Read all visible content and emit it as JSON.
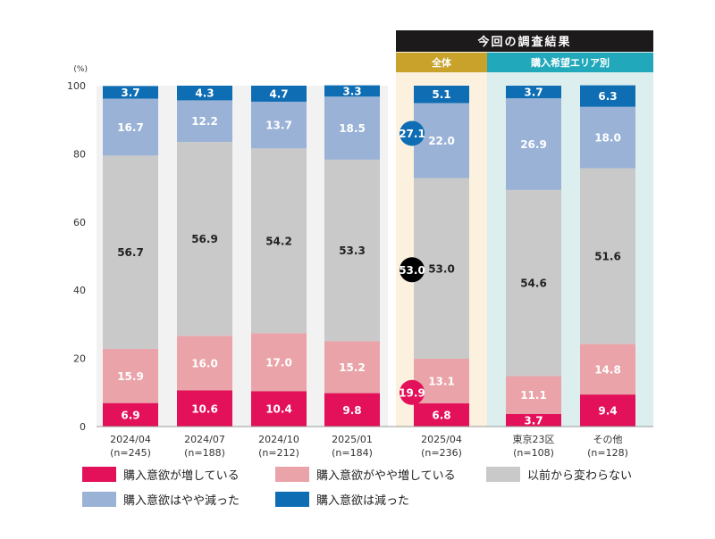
{
  "header": {
    "survey_title": "今回の調査結果",
    "overall_label": "全体",
    "area_label": "購入希望エリア別"
  },
  "colors": {
    "increased": "#e3105a",
    "slightly_increased": "#eaa3a8",
    "unchanged": "#c9c9c9",
    "slightly_decreased": "#99b2d6",
    "decreased": "#0e6db3",
    "title_bg": "#1c1a1a",
    "overall_header": "#c8a22a",
    "overall_bg": "#fbf1de",
    "area_header": "#21a8bb",
    "area_bg": "#dcefee",
    "history_bg": "#f2f2f2"
  },
  "chart_data": {
    "type": "bar",
    "stacked": true,
    "unit_label": "(%)",
    "ylim": [
      0,
      100
    ],
    "yticks": [
      "0",
      "20",
      "40",
      "60",
      "80",
      "100"
    ],
    "categories": [
      {
        "label": "2024/04",
        "n": "(n=245)"
      },
      {
        "label": "2024/07",
        "n": "(n=188)"
      },
      {
        "label": "2024/10",
        "n": "(n=212)"
      },
      {
        "label": "2025/01",
        "n": "(n=184)"
      },
      {
        "label": "2025/04",
        "n": "(n=236)"
      },
      {
        "label": "東京23区",
        "n": "(n=108)"
      },
      {
        "label": "その他",
        "n": "(n=128)"
      }
    ],
    "series": [
      {
        "name": "購入意欲が増している",
        "color_key": "increased",
        "values": [
          6.9,
          10.6,
          10.4,
          9.8,
          6.8,
          3.7,
          9.4
        ]
      },
      {
        "name": "購入意欲がやや増している",
        "color_key": "slightly_increased",
        "values": [
          15.9,
          16.0,
          17.0,
          15.2,
          13.1,
          11.1,
          14.8
        ]
      },
      {
        "name": "以前から変わらない",
        "color_key": "unchanged",
        "values": [
          56.7,
          56.9,
          54.2,
          53.3,
          53.0,
          54.6,
          51.6
        ]
      },
      {
        "name": "購入意欲はやや減った",
        "color_key": "slightly_decreased",
        "values": [
          16.7,
          12.2,
          13.7,
          18.5,
          22.0,
          26.9,
          18.0
        ]
      },
      {
        "name": "購入意欲は減った",
        "color_key": "decreased",
        "values": [
          3.7,
          4.3,
          4.7,
          3.3,
          5.1,
          3.7,
          6.3
        ]
      }
    ],
    "callouts": [
      {
        "text": "27.1",
        "color_key": "decreased",
        "category_index": 4,
        "y": 86.0
      },
      {
        "text": "53.0",
        "color": "#000000",
        "category_index": 4,
        "y": 46.0
      },
      {
        "text": "19.9",
        "color_key": "increased",
        "category_index": 4,
        "y": 10.0
      }
    ]
  }
}
